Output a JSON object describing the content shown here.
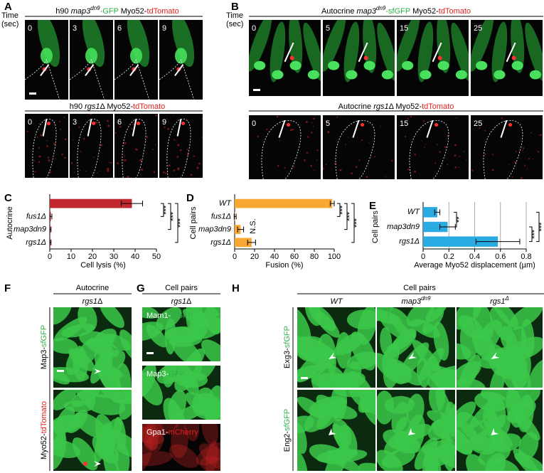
{
  "panels": {
    "A": {
      "letter": "A",
      "time_label": [
        "Time",
        "(sec)"
      ],
      "row1_title": [
        "h90 ",
        "map3",
        "dn9",
        "-GFP",
        " Myo52-",
        "tdTomato"
      ],
      "row2_title": [
        "h90 ",
        "rgs1",
        "Δ Myo52-",
        "tdTomato"
      ],
      "times": [
        0,
        3,
        6,
        9
      ]
    },
    "B": {
      "letter": "B",
      "time_label": [
        "Time",
        "(sec)"
      ],
      "row1_title": [
        "Autocrine ",
        "map3",
        "dn9",
        "-sfGFP",
        " Myo52-",
        "tdTomato"
      ],
      "row2_title": [
        "Autocrine ",
        "rgs1",
        "Δ Myo52-",
        "tdTomato"
      ],
      "times": [
        0,
        5,
        15,
        25
      ]
    },
    "F": {
      "letter": "F",
      "header": "Autocrine",
      "strain": [
        "rgs1",
        "Δ"
      ],
      "row1_label": [
        "Map3-",
        "sfGFP"
      ],
      "row2_label": [
        "Myo52-",
        "tdTomato"
      ]
    },
    "G": {
      "letter": "G",
      "header": "Cell pairs",
      "strain": [
        "rgs1",
        "Δ"
      ],
      "labels": [
        [
          "Mam1-",
          "sfGFP"
        ],
        [
          "Map3-",
          "GFP"
        ],
        [
          "Gpa1-",
          "mCherry"
        ]
      ]
    },
    "H": {
      "letter": "H",
      "header": "Cell pairs",
      "columns": [
        [
          "WT"
        ],
        [
          "map3",
          "dn9"
        ],
        [
          "rgs1",
          "Δ"
        ]
      ],
      "row_labels": [
        [
          "Exg3-",
          "sfGFP"
        ],
        [
          "Eng2-",
          "sfGFP"
        ]
      ]
    }
  },
  "chart_data": [
    {
      "type": "bar",
      "letter": "C",
      "ylabel": "Autocrine",
      "xlabel": "Cell lysis (%)",
      "categories": [
        null,
        "fus1Δ",
        "map3dn9",
        "rgs1Δ"
      ],
      "values": [
        38.5,
        0.5,
        0.3,
        0.3
      ],
      "errors": [
        5,
        0.5,
        0.3,
        0.3
      ],
      "color": "#c1272d",
      "xlim": [
        0,
        50
      ],
      "xticks": [
        0,
        10,
        20,
        30,
        40,
        50
      ],
      "grid": false,
      "annotations": [
        "***",
        "***",
        "***"
      ]
    },
    {
      "type": "bar",
      "letter": "D",
      "ylabel": "Cell pairs",
      "xlabel": "Fusion (%)",
      "categories": [
        "WT",
        "fus1Δ",
        "map3dn9",
        "rgs1Δ"
      ],
      "values": [
        98,
        0.5,
        6,
        17
      ],
      "errors": [
        2,
        1,
        3,
        4
      ],
      "color": "#f7a833",
      "xlim": [
        0,
        100
      ],
      "xticks": [
        0,
        20,
        40,
        60,
        80,
        100
      ],
      "grid": false,
      "annotations": [
        "***",
        "***",
        "***",
        "N.S."
      ]
    },
    {
      "type": "bar",
      "letter": "E",
      "ylabel": "Cell pairs",
      "xlabel": "Average Myo52 displacement (µm)",
      "categories": [
        "WT",
        "map3dn9",
        "rgs1Δ"
      ],
      "values": [
        0.11,
        0.19,
        0.58
      ],
      "errors": [
        0.02,
        0.06,
        0.17
      ],
      "color": "#29aae1",
      "xlim": [
        0,
        0.8
      ],
      "xticks": [
        0,
        0.2,
        0.4,
        0.6,
        0.8
      ],
      "grid": true,
      "annotations": [
        "**",
        "***",
        "***"
      ]
    }
  ]
}
